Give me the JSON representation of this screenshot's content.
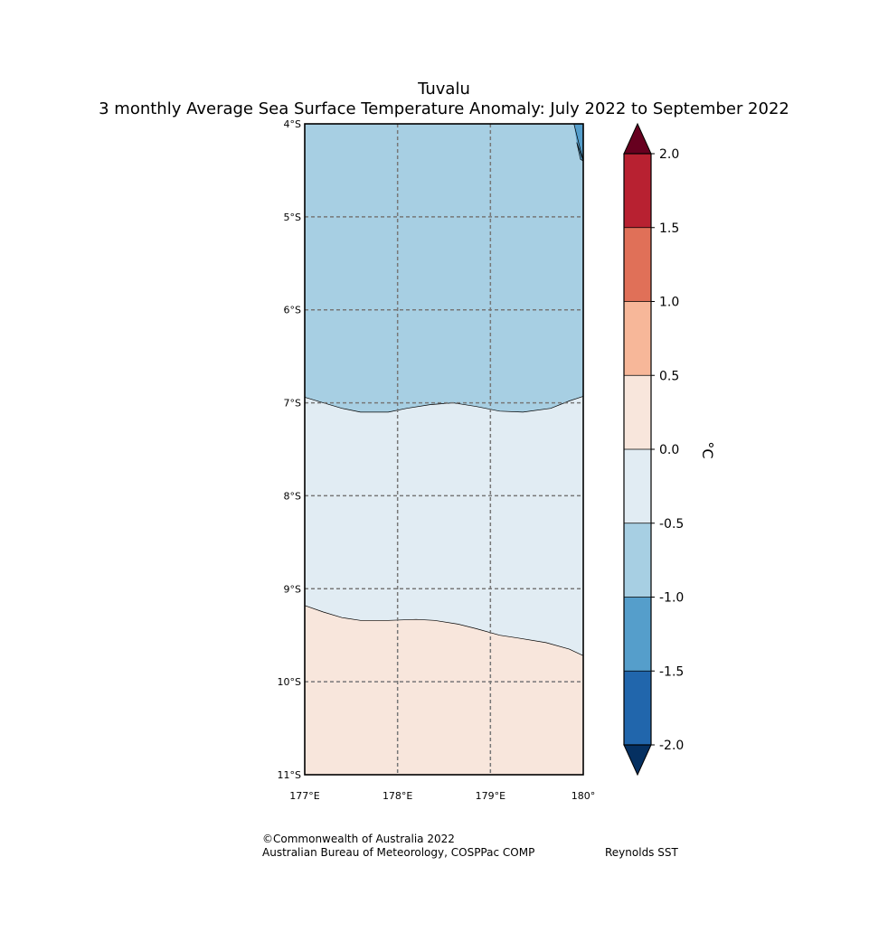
{
  "title": {
    "region": "Tuvalu",
    "subtitle": "3 monthly Average Sea Surface Temperature Anomaly: July 2022 to September 2022"
  },
  "map": {
    "lat_range": [
      -11,
      -4
    ],
    "lon_range": [
      177,
      180
    ],
    "lat_tick_values": [
      -4,
      -5,
      -6,
      -7,
      -8,
      -9,
      -10,
      -11
    ],
    "lat_tick_labels": [
      "4°S",
      "5°S",
      "6°S",
      "7°S",
      "8°S",
      "9°S",
      "10°S",
      "11°S"
    ],
    "lon_tick_values": [
      177,
      178,
      179,
      180
    ],
    "lon_tick_labels": [
      "177°E",
      "178°E",
      "179°E",
      "180°"
    ],
    "gridlines": true,
    "anomaly_zones": [
      {
        "range_label": "-1.0 to -0.5",
        "color": "#a7cfe3"
      },
      {
        "range_label": "-0.5 to 0.0",
        "color": "#e1ecf3"
      },
      {
        "range_label": "0.0 to 0.5",
        "color": "#f8e6dc"
      },
      {
        "range_label": "-1.5 to -1.0",
        "color": "#559ecb"
      }
    ],
    "contour_0_5_neg": [
      [
        177.0,
        -6.94
      ],
      [
        177.2,
        -7.0
      ],
      [
        177.4,
        -7.06
      ],
      [
        177.6,
        -7.1
      ],
      [
        177.9,
        -7.1
      ],
      [
        178.1,
        -7.06
      ],
      [
        178.35,
        -7.02
      ],
      [
        178.6,
        -7.0
      ],
      [
        178.85,
        -7.04
      ],
      [
        179.1,
        -7.09
      ],
      [
        179.35,
        -7.1
      ],
      [
        179.65,
        -7.06
      ],
      [
        179.85,
        -6.98
      ],
      [
        180.0,
        -6.93
      ]
    ],
    "contour_0_0": [
      [
        177.0,
        -9.18
      ],
      [
        177.2,
        -9.25
      ],
      [
        177.4,
        -9.31
      ],
      [
        177.6,
        -9.34
      ],
      [
        177.9,
        -9.34
      ],
      [
        178.2,
        -9.33
      ],
      [
        178.4,
        -9.34
      ],
      [
        178.65,
        -9.38
      ],
      [
        178.85,
        -9.43
      ],
      [
        179.1,
        -9.5
      ],
      [
        179.3,
        -9.53
      ],
      [
        179.6,
        -9.58
      ],
      [
        179.85,
        -9.65
      ],
      [
        180.0,
        -9.72
      ]
    ],
    "cold_patch": [
      [
        179.9,
        -4.0
      ],
      [
        180.0,
        -4.0
      ],
      [
        180.0,
        -4.4
      ],
      [
        179.97,
        -4.38
      ],
      [
        179.93,
        -4.2
      ]
    ]
  },
  "colorbar": {
    "unit_label": "°C",
    "boundaries": [
      -2.0,
      -1.5,
      -1.0,
      -0.5,
      0.0,
      0.5,
      1.0,
      1.5,
      2.0
    ],
    "tick_labels": [
      "-2.0",
      "-1.5",
      "-1.0",
      "-0.5",
      "0.0",
      "0.5",
      "1.0",
      "1.5",
      "2.0"
    ],
    "colors": [
      "#2166ac",
      "#559ecb",
      "#a7cfe3",
      "#e1ecf3",
      "#f8e6dc",
      "#f7b799",
      "#e07058",
      "#b82131"
    ],
    "under_color": "#053061",
    "over_color": "#67001f"
  },
  "footer": {
    "credit_line1": "©Commonwealth of Australia 2022",
    "credit_line2": "Australian Bureau of Meteorology, COSPPac COMP",
    "product": "Reynolds SST"
  }
}
